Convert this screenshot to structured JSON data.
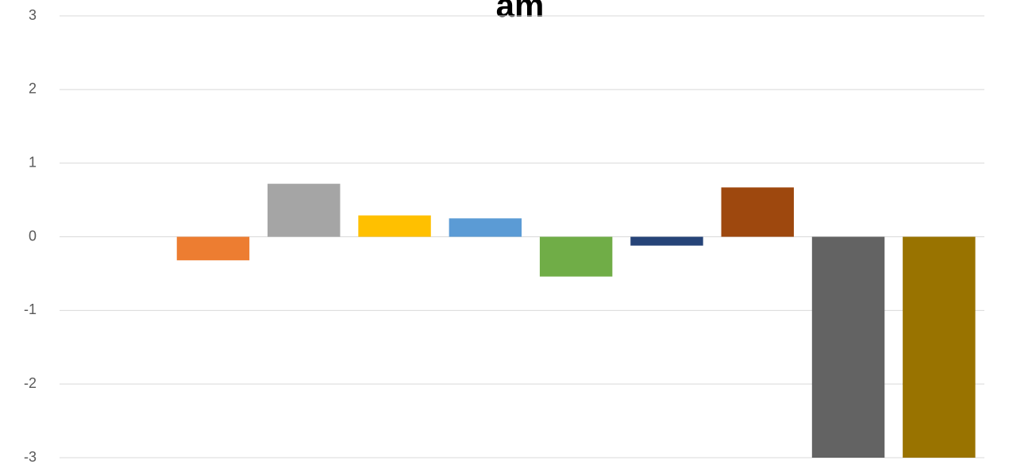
{
  "chart_data": {
    "type": "bar",
    "title": "am",
    "categories": [
      null,
      null,
      null,
      null,
      null,
      null,
      null,
      null,
      null,
      null
    ],
    "values": [
      0,
      -0.32,
      0.72,
      0.29,
      0.25,
      -0.54,
      -0.12,
      0.67,
      -3,
      -3
    ],
    "colors": [
      "#4472c4",
      "#ed7d31",
      "#a5a5a5",
      "#ffc000",
      "#5b9bd5",
      "#70ad47",
      "#264478",
      "#9e480e",
      "#636363",
      "#997300"
    ],
    "ylim": [
      -3,
      3
    ],
    "yticks": [
      -3,
      -2,
      -1,
      0,
      1,
      2,
      3
    ],
    "grid": true
  }
}
